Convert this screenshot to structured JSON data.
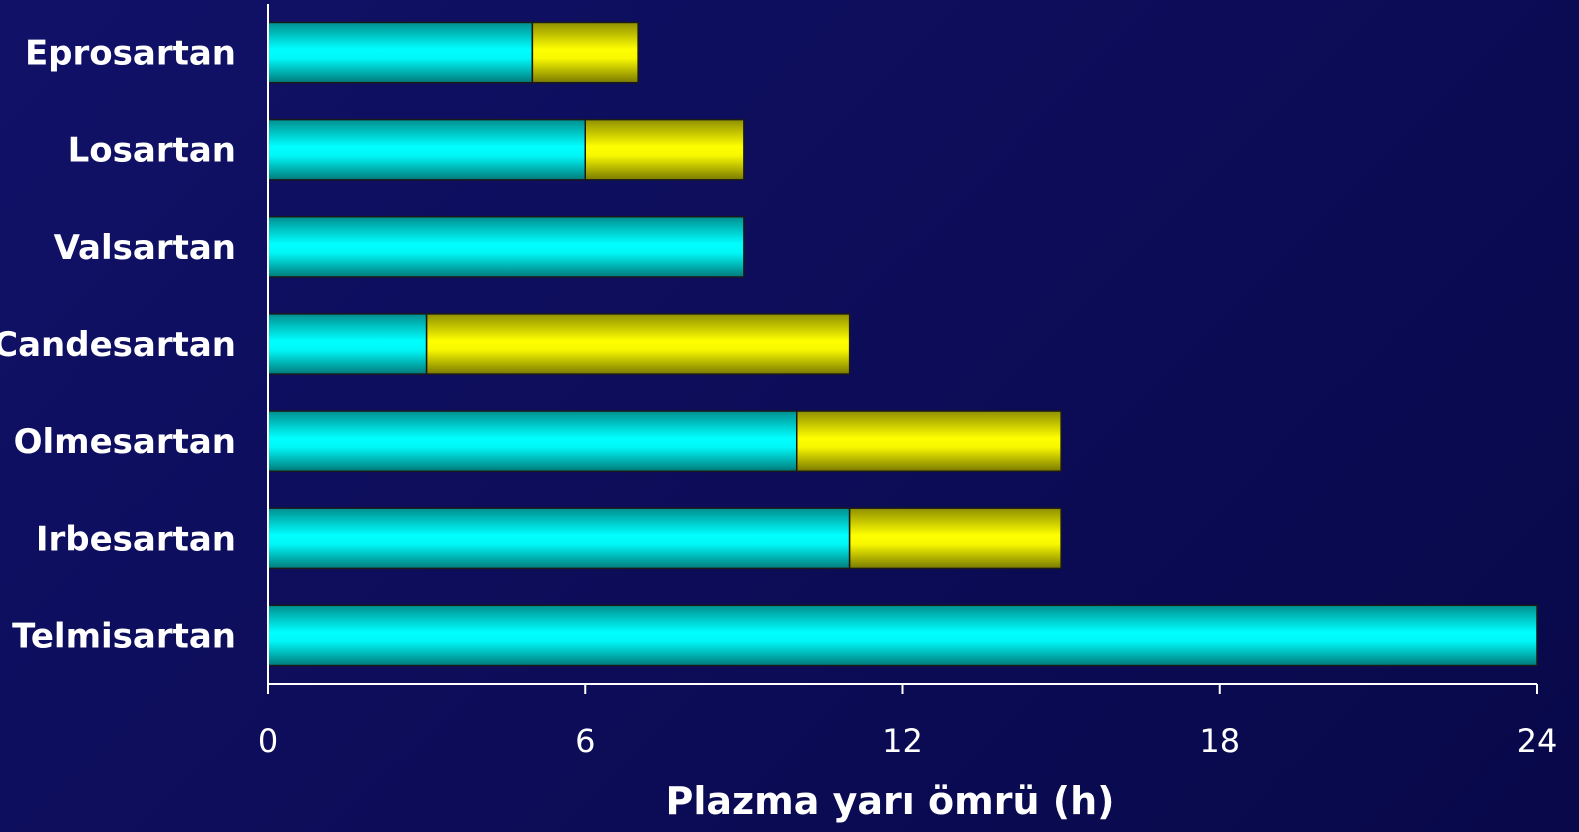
{
  "chart_data": {
    "type": "bar",
    "orientation": "horizontal",
    "stacked": true,
    "categories": [
      "Eprosartan",
      "Losartan",
      "Valsartan",
      "Candesartan",
      "Olmesartan",
      "Irbesartan",
      "Telmisartan"
    ],
    "series": [
      {
        "values": [
          5,
          6,
          9,
          3,
          10,
          11,
          24
        ],
        "color": "#00f5f5"
      },
      {
        "values": [
          2,
          3,
          0,
          8,
          5,
          4,
          0
        ],
        "color": "#f5f500"
      }
    ],
    "xlabel": "Plazma yarı ömrü (h)",
    "xlim": [
      0,
      24
    ],
    "xticks": [
      0,
      6,
      12,
      18,
      24
    ],
    "grid": false,
    "legend": false
  },
  "colors": {
    "background": "#0c0c55",
    "axis": "#ffffff",
    "bar_outline": "#1a1a1a"
  }
}
